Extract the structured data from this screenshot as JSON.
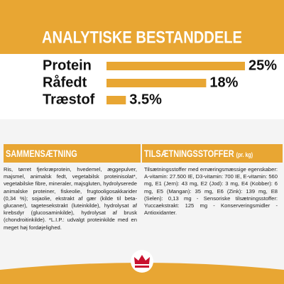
{
  "chart_data": {
    "type": "bar",
    "orientation": "horizontal",
    "title": "ANALYTISKE BESTANDDELE",
    "categories": [
      "Protein",
      "Råfedt",
      "Træstof"
    ],
    "values": [
      25,
      18,
      3.5
    ],
    "value_labels": [
      "25%",
      "18%",
      "3.5%"
    ],
    "color": "#e8a633",
    "xlim": [
      0,
      25
    ]
  },
  "sections": [
    {
      "title": "SAMMENSÆTNING",
      "text": "Ris, tørret fjerkræprotein, hvedemel, æggepulver, majsmel, animalsk fedt, vegetabilsk proteinisolat*, vegetabilske fibre, mineraler, majsgluten, hydrolyserede animalske proteiner, fiskeolie, frugtooligosakkarider (0,34 %); sojaolie, ekstrakt af gær (kilde til beta-glucaner), tagetesekstrakt (luteinkilde), hydrolysat af krebsdyr (glucosaminkilde), hydrolysat af brusk (chondroitinkilde). *L.I.P.: udvalgt proteinkilde med en meget høj fordøjelighed."
    },
    {
      "title": "TILSÆTNINGSSTOFFER",
      "unit": "(pr. kg)",
      "text": "Tilsætningsstoffer med ernæringsmæssige egenskaber: A-vitamin: 27.500 IE, D3-vitamin: 700 IE, E-vitamin: 560 mg, E1 (Jern): 43 mg, E2 (Jod): 3 mg, E4 (Kobber): 6 mg, E5 (Mangan): 35 mg, E6 (Zink): 139 mg, E8 (Selen): 0,13 mg - Sensoriske tilsætningsstoffer: Yuccaekstrakt: 125 mg - Konserveringsmidler - Antioxidanter."
    }
  ]
}
